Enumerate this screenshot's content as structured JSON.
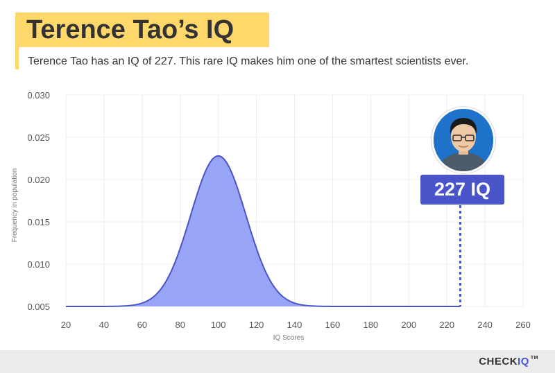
{
  "header": {
    "title": "Terence Tao’s IQ",
    "subtitle": "Terence Tao has an IQ of 227. This rare IQ makes him one of the smartest scientists ever."
  },
  "chart_data": {
    "type": "area",
    "xlabel": "IQ Scores",
    "ylabel": "Frequency in population",
    "xlim": [
      20,
      260
    ],
    "ylim": [
      0.005,
      0.03
    ],
    "x_ticks": [
      "20",
      "40",
      "60",
      "80",
      "100",
      "120",
      "140",
      "160",
      "180",
      "200",
      "220",
      "240",
      "260"
    ],
    "y_ticks": [
      "0.005",
      "0.010",
      "0.015",
      "0.020",
      "0.025",
      "0.030"
    ],
    "grid": true,
    "distribution": {
      "mean": 100,
      "sd": 14.5,
      "baseline": 0.005,
      "peak": 0.0228
    },
    "fill_color": "#98a4f6",
    "line_color": "#4a54c9",
    "marker": {
      "x": 227,
      "label": "227 IQ"
    }
  },
  "logo": {
    "part1": "CHECK",
    "part2": "IQ",
    "tm": "TM"
  },
  "colors": {
    "accent_yellow": "#ffd86b",
    "accent_blue": "#4a54c9"
  }
}
